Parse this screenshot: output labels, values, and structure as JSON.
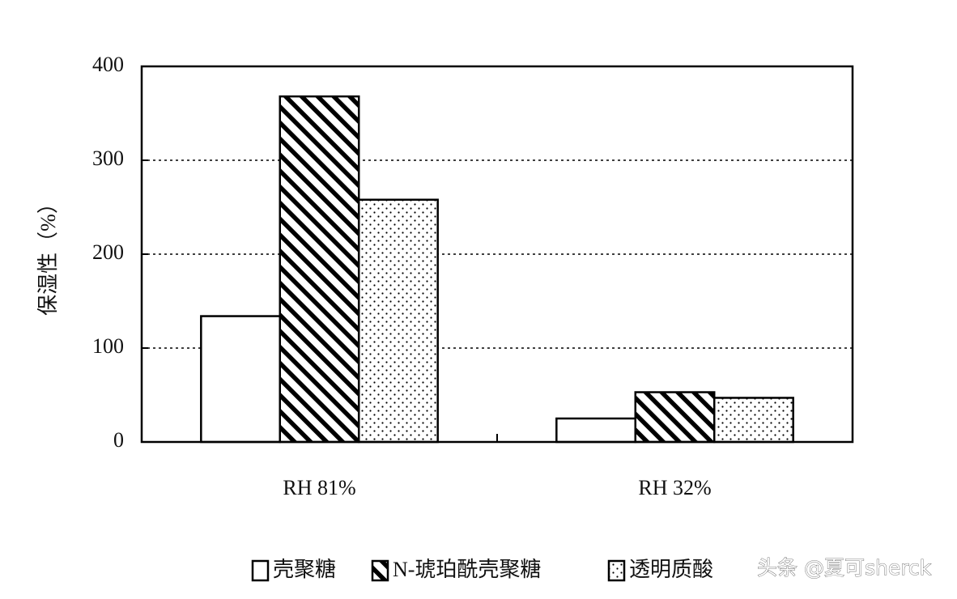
{
  "chart_data": {
    "type": "bar",
    "y_label": "保湿性（%）",
    "categories": [
      "RH 81%",
      "RH 32%"
    ],
    "series": [
      {
        "name": "壳聚糖",
        "color": "#000000",
        "pattern": "none",
        "values": [
          134,
          25
        ]
      },
      {
        "name": "N-琥珀酰壳聚糖",
        "color": "#000000",
        "pattern": "hatch",
        "values": [
          368,
          53
        ]
      },
      {
        "name": "透明质酸",
        "color": "#000000",
        "pattern": "dots",
        "values": [
          258,
          47
        ]
      }
    ],
    "ylim": [
      0,
      400
    ],
    "yticks": [
      0,
      100,
      200,
      300,
      400
    ],
    "grid": true,
    "legend": "bottom",
    "watermark": "头条 @夏可sherck"
  }
}
